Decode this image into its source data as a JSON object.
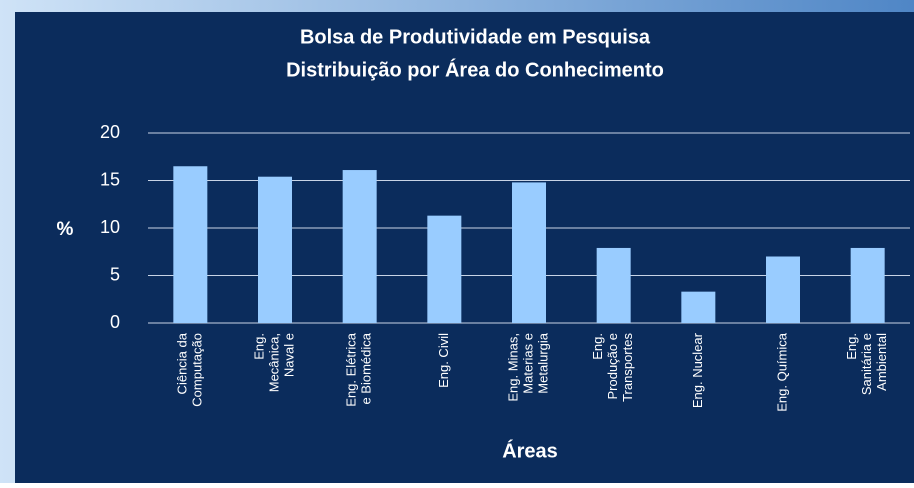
{
  "chart_data": {
    "type": "bar",
    "title": [
      "Bolsa de Produtividade em Pesquisa",
      "Distribuição por Área do Conhecimento"
    ],
    "x_label": "Áreas",
    "y_label": "%",
    "categories": [
      [
        "Ciência da",
        "Computação"
      ],
      [
        "Eng.",
        "Mecânica,",
        "Naval e"
      ],
      [
        "Eng. Elétrica",
        "e Biomédica"
      ],
      [
        "Eng. Civil"
      ],
      [
        "Eng. Minas,",
        "Materias e",
        "Metalurgia"
      ],
      [
        "Eng.",
        "Produção e",
        "Transportes"
      ],
      [
        "Eng. Nuclear"
      ],
      [
        "Eng. Química"
      ],
      [
        "Eng.",
        "Sanitária e",
        "Ambiental"
      ]
    ],
    "values": [
      16.5,
      15.4,
      16.1,
      11.3,
      14.8,
      7.9,
      3.3,
      7.0,
      7.9
    ],
    "color": "#99ccff",
    "ylim": [
      0,
      20
    ],
    "yticks": [
      0,
      5,
      10,
      15,
      20
    ],
    "grid": true
  }
}
